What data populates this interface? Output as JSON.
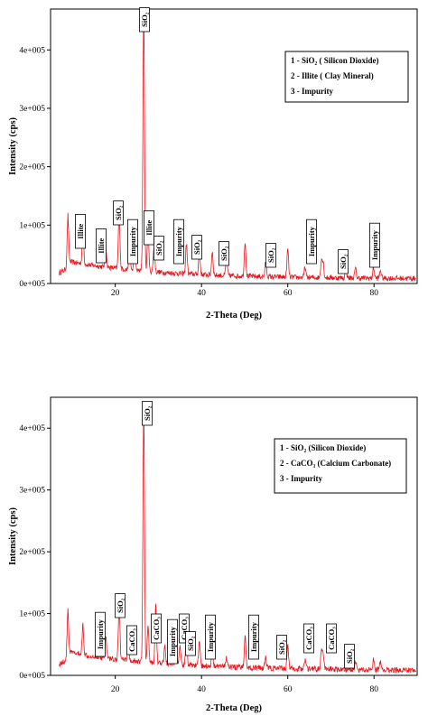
{
  "chart_data": [
    {
      "type": "line",
      "xlabel": "2-Theta (Deg)",
      "ylabel": "Intensity (cps)",
      "xlim": [
        5,
        90
      ],
      "ylim": [
        0,
        470000
      ],
      "x_ticks": [
        {
          "value": 20,
          "label": "20"
        },
        {
          "value": 40,
          "label": "40"
        },
        {
          "value": 60,
          "label": "60"
        },
        {
          "value": 80,
          "label": "80"
        }
      ],
      "y_ticks": [
        {
          "value": 0,
          "label": "0e+005"
        },
        {
          "value": 100000,
          "label": "1e+005"
        },
        {
          "value": 200000,
          "label": "2e+005"
        },
        {
          "value": 300000,
          "label": "3e+005"
        },
        {
          "value": 400000,
          "label": "4e+005"
        }
      ],
      "grid": false,
      "line_color": "#e8141c",
      "legend_position": "top-right",
      "legend": [
        "1 - SiO₂ ( Silicon Dioxide)",
        "2 - Illite ( Clay Mineral)",
        "3 - Impurity"
      ],
      "peaks": [
        [
          9.0,
          80000
        ],
        [
          12.5,
          62000
        ],
        [
          17.8,
          38000
        ],
        [
          20.9,
          98000
        ],
        [
          23.3,
          34000
        ],
        [
          24.5,
          40000
        ],
        [
          26.6,
          445000
        ],
        [
          27.6,
          68000
        ],
        [
          29.0,
          42000
        ],
        [
          36.5,
          52000
        ],
        [
          39.5,
          42000
        ],
        [
          42.5,
          40000
        ],
        [
          45.8,
          30000
        ],
        [
          50.1,
          60000
        ],
        [
          54.9,
          26000
        ],
        [
          60.0,
          48000
        ],
        [
          64.0,
          18000
        ],
        [
          67.8,
          30000
        ],
        [
          68.2,
          26000
        ],
        [
          73.5,
          14000
        ],
        [
          75.7,
          16000
        ],
        [
          79.9,
          18000
        ],
        [
          81.5,
          14000
        ]
      ],
      "annotations": [
        {
          "text": "SiO₂",
          "x": 26.6
        },
        {
          "text": "Illite",
          "x": 12.5
        },
        {
          "text": "Illite",
          "x": 17.8
        },
        {
          "text": "SiO₂",
          "x": 20.9
        },
        {
          "text": "Impurity",
          "x": 24.5
        },
        {
          "text": "Illite",
          "x": 28.5
        },
        {
          "text": "SiO₂",
          "x": 30.5
        },
        {
          "text": "Impurity",
          "x": 36.5
        },
        {
          "text": "SiO₂",
          "x": 40.0
        },
        {
          "text": "SiO₂",
          "x": 45.8
        },
        {
          "text": "SiO₂",
          "x": 55.5
        },
        {
          "text": "Impurity",
          "x": 67.8
        },
        {
          "text": "SiO₂",
          "x": 73.5
        },
        {
          "text": "Impurity",
          "x": 80.0
        }
      ]
    },
    {
      "type": "line",
      "xlabel": "2-Theta (Deg)",
      "ylabel": "Intensity (cps)",
      "xlim": [
        5,
        90
      ],
      "ylim": [
        0,
        450000
      ],
      "x_ticks": [
        {
          "value": 20,
          "label": "20"
        },
        {
          "value": 40,
          "label": "40"
        },
        {
          "value": 60,
          "label": "60"
        },
        {
          "value": 80,
          "label": "80"
        }
      ],
      "y_ticks": [
        {
          "value": 0,
          "label": "0e+005"
        },
        {
          "value": 100000,
          "label": "1e+005"
        },
        {
          "value": 200000,
          "label": "2e+005"
        },
        {
          "value": 300000,
          "label": "3e+005"
        },
        {
          "value": 400000,
          "label": "4e+005"
        }
      ],
      "grid": false,
      "line_color": "#e8141c",
      "legend_position": "top-right",
      "legend": [
        "1 - SiO₂ (Silicon Dioxide)",
        "2 - CaCO₃ (Calcium Carbonate)",
        "3 - Impurity"
      ],
      "peaks": [
        [
          9.0,
          70000
        ],
        [
          12.5,
          48000
        ],
        [
          17.8,
          34000
        ],
        [
          20.9,
          90000
        ],
        [
          23.0,
          28000
        ],
        [
          26.6,
          410000
        ],
        [
          27.6,
          62000
        ],
        [
          29.4,
          96000
        ],
        [
          31.5,
          30000
        ],
        [
          34.0,
          22000
        ],
        [
          35.0,
          28000
        ],
        [
          36.5,
          46000
        ],
        [
          39.5,
          38000
        ],
        [
          42.5,
          28000
        ],
        [
          45.8,
          16000
        ],
        [
          50.1,
          55000
        ],
        [
          54.9,
          18000
        ],
        [
          60.0,
          40000
        ],
        [
          64.0,
          16000
        ],
        [
          67.8,
          28000
        ],
        [
          68.2,
          24000
        ],
        [
          75.7,
          14000
        ],
        [
          79.9,
          16000
        ],
        [
          81.5,
          12000
        ]
      ],
      "annotations": [
        {
          "text": "SiO₂",
          "x": 26.6
        },
        {
          "text": "Impurity",
          "x": 17.5
        },
        {
          "text": "SiO₂",
          "x": 21.0
        },
        {
          "text": "CaCO₃",
          "x": 24.0
        },
        {
          "text": "CaCO₃",
          "x": 29.4
        },
        {
          "text": "Impurity",
          "x": 31.5
        },
        {
          "text": "CaCO₃",
          "x": 34.5
        },
        {
          "text": "SiO₂",
          "x": 36.5
        },
        {
          "text": "Impurity",
          "x": 39.8
        },
        {
          "text": "Impurity",
          "x": 51.0
        },
        {
          "text": "SiO₂",
          "x": 57.0
        },
        {
          "text": "CaCO₃",
          "x": 64.0
        },
        {
          "text": "CaCO₃",
          "x": 68.8
        },
        {
          "text": "SiO₂",
          "x": 74.5
        }
      ]
    }
  ]
}
